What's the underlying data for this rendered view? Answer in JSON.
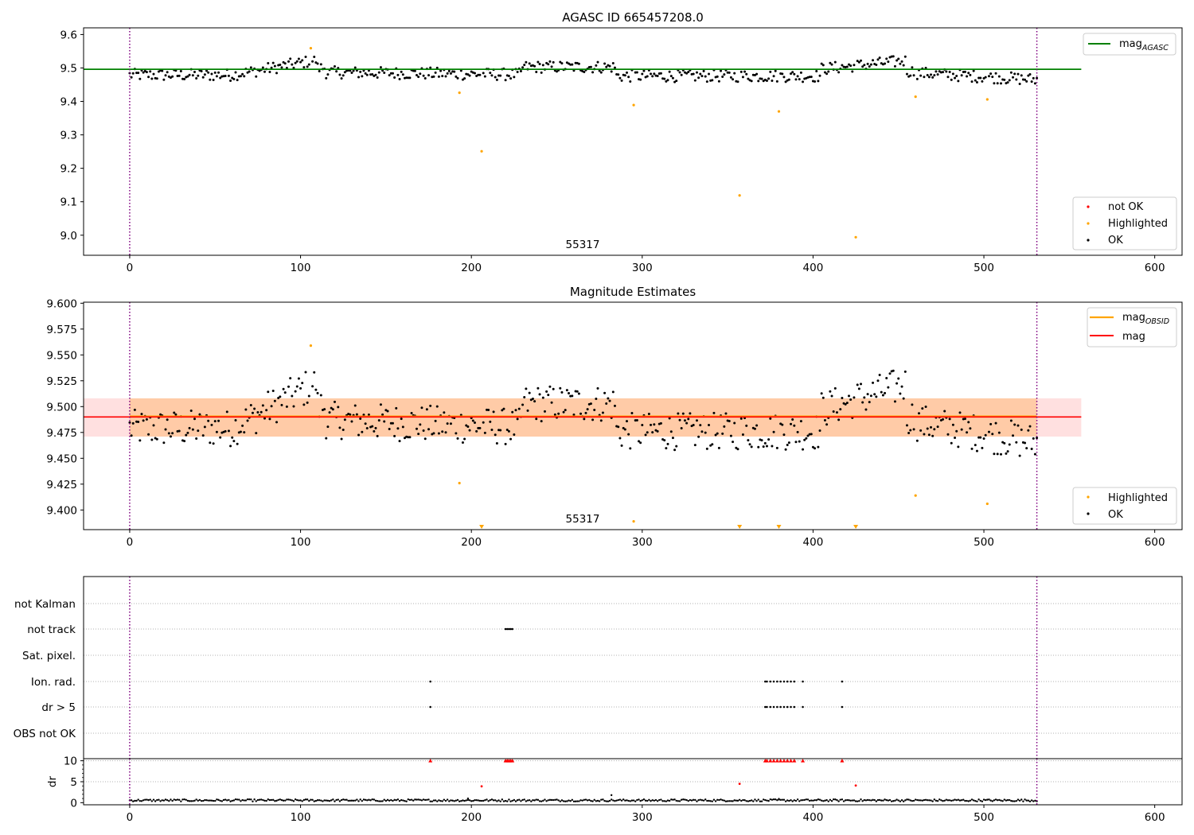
{
  "chart_data": [
    {
      "type": "scatter",
      "title": "AGASC ID 665457208.0",
      "annotation": "55317",
      "xlim": [
        -27,
        616
      ],
      "ylim": [
        8.94,
        9.62
      ],
      "xticks": [
        0,
        100,
        200,
        300,
        400,
        500,
        600
      ],
      "yticks": [
        9.0,
        9.1,
        9.2,
        9.3,
        9.4,
        9.5,
        9.6
      ],
      "ytick_labels": [
        "9.0",
        "9.1",
        "9.2",
        "9.3",
        "9.4",
        "9.5",
        "9.6"
      ],
      "vlines": [
        0,
        531
      ],
      "hline": {
        "y": 9.496,
        "x_range": [
          -27,
          557
        ],
        "color": "#008000"
      },
      "legend_upper": [
        {
          "label": "mag",
          "sub": "AGASC",
          "color": "#008000"
        }
      ],
      "legend_lower": [
        {
          "label": "not OK",
          "color": "#ff0000"
        },
        {
          "label": "Highlighted",
          "color": "#ffa500"
        },
        {
          "label": "OK",
          "color": "#000000"
        }
      ],
      "highlighted": {
        "x": [
          106,
          193,
          206,
          295,
          357,
          380,
          425,
          460,
          502
        ],
        "y": [
          9.559,
          9.426,
          9.251,
          9.389,
          9.119,
          9.37,
          8.994,
          9.414,
          9.406
        ]
      }
    },
    {
      "type": "scatter",
      "title": "Magnitude Estimates",
      "annotation": "55317",
      "xlim": [
        -27,
        616
      ],
      "ylim": [
        9.381,
        9.601
      ],
      "xticks": [
        0,
        100,
        200,
        300,
        400,
        500,
        600
      ],
      "yticks": [
        9.4,
        9.425,
        9.45,
        9.475,
        9.5,
        9.525,
        9.55,
        9.575,
        9.6
      ],
      "ytick_labels": [
        "9.400",
        "9.425",
        "9.450",
        "9.475",
        "9.500",
        "9.525",
        "9.550",
        "9.575",
        "9.600"
      ],
      "vlines": [
        0,
        531
      ],
      "band": {
        "y_range": [
          9.471,
          9.508
        ],
        "x_range": [
          -27,
          557
        ]
      },
      "mag_obsid": 9.4905,
      "mag": 9.49,
      "legend_upper": [
        {
          "label": "mag",
          "sub": "OBSID",
          "color": "#ffa500"
        },
        {
          "label": "mag",
          "color": "#ff0000"
        }
      ],
      "legend_lower": [
        {
          "label": "Highlighted",
          "color": "#ffa500"
        },
        {
          "label": "OK",
          "color": "#000000"
        }
      ],
      "highlighted": {
        "x": [
          106,
          193,
          295,
          460,
          502
        ],
        "y": [
          9.559,
          9.426,
          9.389,
          9.414,
          9.406
        ]
      },
      "clipped_low": [
        206,
        357,
        380,
        425
      ]
    },
    {
      "type": "scatter",
      "xlim": [
        -27,
        616
      ],
      "vlines": [
        0,
        531
      ],
      "flag_labels": [
        "not Kalman",
        "not track",
        "Sat. pixel.",
        "Ion. rad.",
        "dr > 5",
        "OBS not OK"
      ],
      "flags": {
        "not track": [
          220,
          221,
          222,
          223,
          224
        ],
        "Ion. rad.": [
          176,
          372,
          373,
          375,
          377,
          379,
          381,
          383,
          385,
          387,
          389,
          394,
          417
        ],
        "dr > 5": [
          176,
          372,
          373,
          375,
          377,
          379,
          381,
          383,
          385,
          387,
          389,
          394,
          417
        ]
      }
    },
    {
      "type": "scatter",
      "ylabel": "dr",
      "xlim": [
        -27,
        616
      ],
      "ylim": [
        -0.5,
        10.5
      ],
      "xticks": [
        0,
        100,
        200,
        300,
        400,
        500,
        600
      ],
      "yticks": [
        0,
        5,
        10
      ],
      "ytick_labels": [
        "0",
        "5",
        "10"
      ],
      "vlines": [
        0,
        531
      ],
      "clipped_high": [
        176,
        220,
        221,
        222,
        223,
        224,
        372,
        373,
        375,
        377,
        379,
        381,
        383,
        385,
        387,
        389,
        394,
        417
      ],
      "red_points": {
        "x": [
          206,
          357,
          425
        ],
        "y": [
          3.9,
          4.5,
          4.1
        ]
      },
      "outliers": {
        "x": [
          198,
          282,
          380
        ],
        "y": [
          1.0,
          1.8,
          0.9
        ]
      }
    }
  ]
}
